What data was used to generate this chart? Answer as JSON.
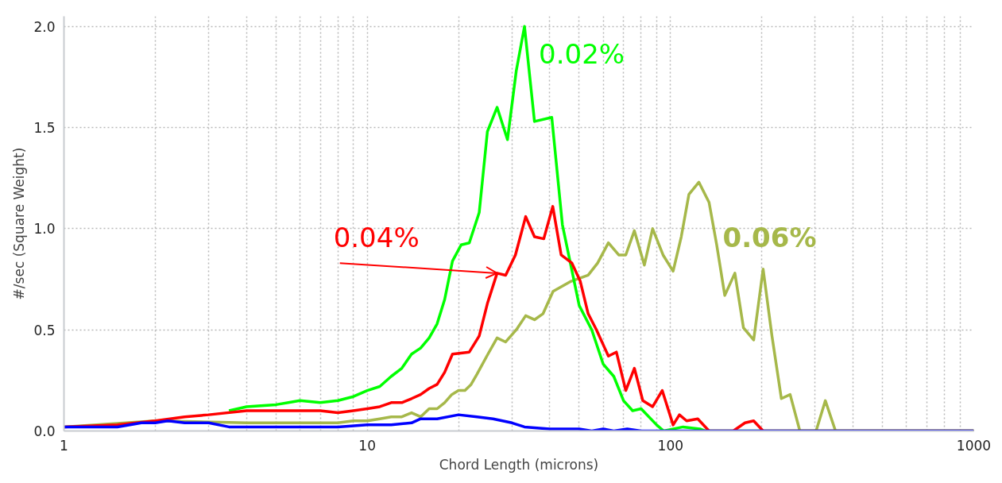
{
  "chart_data": {
    "type": "line",
    "xlabel": "Chord Length (microns)",
    "ylabel": "#/sec (Square Weight)",
    "log": "x",
    "grid": true,
    "marker": "none",
    "line_style": "solid",
    "legend": false,
    "xlim": [
      1,
      1000
    ],
    "ylim": [
      0,
      2.05
    ],
    "xticks": [
      1,
      {
        "value": 2,
        "label": null
      },
      {
        "value": 3,
        "label": null
      },
      {
        "value": 4,
        "label": null
      },
      {
        "value": 5,
        "label": null
      },
      {
        "value": 6,
        "label": null
      },
      {
        "value": 7,
        "label": null
      },
      {
        "value": 8,
        "label": null
      },
      {
        "value": 9,
        "label": null
      },
      10,
      {
        "value": 20,
        "label": null
      },
      {
        "value": 30,
        "label": null
      },
      {
        "value": 40,
        "label": null
      },
      {
        "value": 50,
        "label": null
      },
      {
        "value": 60,
        "label": null
      },
      {
        "value": 70,
        "label": null
      },
      {
        "value": 80,
        "label": null
      },
      {
        "value": 90,
        "label": null
      },
      100,
      {
        "value": 200,
        "label": null
      },
      {
        "value": 300,
        "label": null
      },
      {
        "value": 400,
        "label": null
      },
      {
        "value": 500,
        "label": null
      },
      {
        "value": 600,
        "label": null
      },
      {
        "value": 700,
        "label": null
      },
      {
        "value": 800,
        "label": null
      },
      {
        "value": 900,
        "label": null
      },
      1000
    ],
    "yticks": [
      {
        "value": 0,
        "label": "0.0"
      },
      0.5,
      {
        "value": 1,
        "label": "1.0"
      },
      1.5,
      {
        "value": 2,
        "label": "2.0"
      }
    ],
    "series": [
      {
        "name": "0.06%",
        "color": "#a6b84a",
        "x": [
          1,
          2,
          4,
          6,
          8,
          9,
          10,
          11,
          12,
          13,
          14,
          15,
          16,
          17,
          18,
          19,
          20,
          21,
          22,
          23,
          25,
          26.8,
          28.6,
          31,
          33.3,
          35.6,
          38,
          41,
          47,
          53.5,
          57.5,
          62.4,
          67.5,
          71.2,
          76,
          82,
          87.3,
          94.5,
          102,
          108.5,
          115,
          124,
          134,
          142,
          151,
          163,
          174,
          188,
          202,
          216,
          232,
          248,
          267,
          302,
          324,
          350,
          1000
        ],
        "values": [
          0.02,
          0.05,
          0.04,
          0.04,
          0.04,
          0.05,
          0.05,
          0.06,
          0.07,
          0.07,
          0.09,
          0.07,
          0.11,
          0.11,
          0.14,
          0.18,
          0.2,
          0.2,
          0.23,
          0.28,
          0.38,
          0.46,
          0.44,
          0.5,
          0.57,
          0.55,
          0.58,
          0.69,
          0.74,
          0.77,
          0.83,
          0.93,
          0.87,
          0.87,
          0.99,
          0.82,
          1.0,
          0.87,
          0.79,
          0.96,
          1.17,
          1.23,
          1.13,
          0.92,
          0.67,
          0.78,
          0.51,
          0.45,
          0.8,
          0.47,
          0.16,
          0.18,
          0,
          0,
          0.15,
          0,
          0
        ]
      },
      {
        "name": "0.02%",
        "color": "#00ff00",
        "x": [
          3.5,
          4,
          5,
          6,
          7,
          8,
          9,
          10,
          11,
          12,
          13,
          14,
          15,
          16,
          17,
          18,
          19.1,
          20.4,
          21.7,
          23.4,
          24.9,
          26.8,
          29,
          31,
          33,
          35.6,
          40.6,
          44,
          50,
          55,
          60,
          65,
          70,
          75,
          80,
          90,
          95,
          110,
          125,
          130,
          1000
        ],
        "values": [
          0.1,
          0.12,
          0.13,
          0.15,
          0.14,
          0.15,
          0.17,
          0.2,
          0.22,
          0.27,
          0.31,
          0.38,
          0.41,
          0.46,
          0.53,
          0.65,
          0.84,
          0.92,
          0.93,
          1.08,
          1.48,
          1.6,
          1.44,
          1.78,
          2.0,
          1.53,
          1.55,
          1.02,
          0.62,
          0.5,
          0.33,
          0.27,
          0.15,
          0.1,
          0.11,
          0.03,
          0,
          0.02,
          0.01,
          0,
          0
        ]
      },
      {
        "name": "0.04%",
        "color": "#ff0000",
        "x": [
          1,
          1.5,
          2,
          2.5,
          3,
          4,
          5,
          6,
          7,
          8,
          9,
          10,
          11,
          12,
          13,
          14,
          15,
          16,
          17,
          18,
          19.1,
          21.7,
          23.4,
          24.9,
          26.8,
          28.6,
          30.8,
          33.3,
          35.6,
          38.2,
          40.9,
          43.6,
          47.3,
          50.4,
          53.5,
          57,
          62.4,
          66.3,
          71.2,
          76,
          81,
          87.3,
          93.9,
          102,
          107,
          113,
          123,
          134,
          161,
          176,
          188,
          202,
          1000
        ],
        "values": [
          0.02,
          0.03,
          0.05,
          0.07,
          0.08,
          0.1,
          0.1,
          0.1,
          0.1,
          0.09,
          0.1,
          0.11,
          0.12,
          0.14,
          0.14,
          0.16,
          0.18,
          0.21,
          0.23,
          0.29,
          0.38,
          0.39,
          0.47,
          0.63,
          0.78,
          0.77,
          0.87,
          1.06,
          0.96,
          0.95,
          1.11,
          0.87,
          0.83,
          0.74,
          0.58,
          0.5,
          0.37,
          0.39,
          0.2,
          0.31,
          0.15,
          0.12,
          0.2,
          0.03,
          0.08,
          0.05,
          0.06,
          0,
          0,
          0.04,
          0.05,
          0,
          0
        ]
      },
      {
        "color": "#0000ff",
        "x": [
          1,
          1.5,
          1.8,
          2,
          2.2,
          2.5,
          3,
          3.5,
          5,
          8,
          10,
          12,
          14,
          15,
          17,
          20,
          23,
          26,
          30,
          33,
          40,
          50,
          55,
          60,
          65,
          72,
          80,
          1000
        ],
        "values": [
          0.02,
          0.02,
          0.04,
          0.04,
          0.05,
          0.04,
          0.04,
          0.02,
          0.02,
          0.02,
          0.03,
          0.03,
          0.04,
          0.06,
          0.06,
          0.08,
          0.07,
          0.06,
          0.04,
          0.02,
          0.01,
          0.01,
          0,
          0.01,
          0,
          0.01,
          0,
          0
        ]
      }
    ]
  }
}
